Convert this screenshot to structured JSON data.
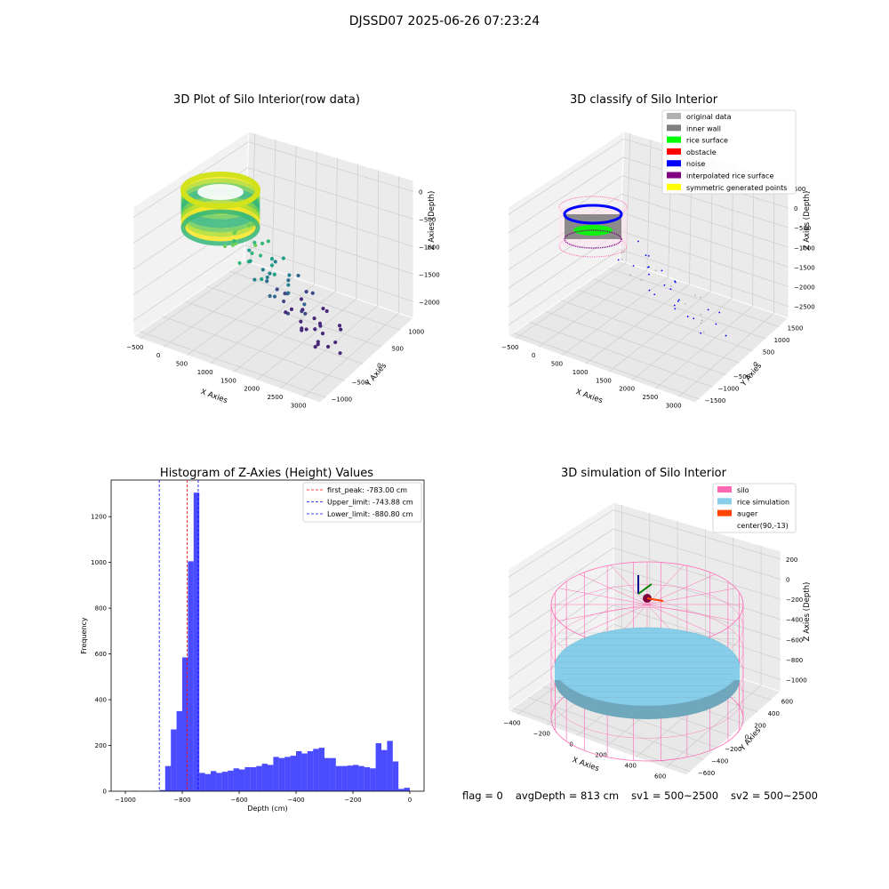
{
  "figure": {
    "suptitle": "DJSSD07 2025-06-26 07:23:24"
  },
  "footer": {
    "flag": "flag = 0",
    "avg_depth": "avgDepth = 813 cm",
    "sv1": "sv1 = 500~2500",
    "sv2": "sv2 = 500~2500"
  },
  "colors": {
    "hist_bar": "#0000ff",
    "first_peak": "#ff0000",
    "limit_line": "#0000ff",
    "silo": "#ff69b4",
    "rice": "#87ceeb",
    "auger": "#ff4500",
    "legend_original": "#b0b0b0",
    "legend_inner_wall": "#808080",
    "legend_rice_surface": "#00ff00",
    "legend_obstacle": "#ff0000",
    "legend_noise": "#0000ff",
    "legend_interp": "#800080",
    "legend_symmetric": "#ffff00"
  },
  "chart_data": [
    {
      "type": "scatter3d",
      "title": "3D Plot of Silo Interior(row data)",
      "xlabel": "X Axies",
      "ylabel": "Y Axies",
      "zlabel": "Z Axies (Depth)",
      "x_ticks": [
        "−500",
        "0",
        "500",
        "1000",
        "1500",
        "2000",
        "2500",
        "3000"
      ],
      "y_ticks": [
        "−1000",
        "−500",
        "0",
        "500",
        "1000"
      ],
      "z_ticks": [
        "0",
        "−500",
        "−1000",
        "−1500",
        "−2000"
      ],
      "colormap": "viridis"
    },
    {
      "type": "scatter3d",
      "title": "3D classify of Silo Interior",
      "xlabel": "X Axies",
      "ylabel": "Y Axies",
      "zlabel": "Z Axies (Depth)",
      "x_ticks": [
        "−500",
        "0",
        "500",
        "1000",
        "1500",
        "2000",
        "2500",
        "3000"
      ],
      "y_ticks": [
        "−1500",
        "−1000",
        "−500",
        "0",
        "500",
        "1000",
        "1500"
      ],
      "z_ticks": [
        "500",
        "0",
        "−500",
        "−1000",
        "−1500",
        "−2000",
        "−2500"
      ],
      "legend": [
        "original data",
        "inner wall",
        "rice surface",
        "obstacle",
        "noise",
        "interpolated rice surface",
        "symmetric generated points"
      ],
      "legend_placement": "top-right"
    },
    {
      "type": "bar",
      "title": "Histogram of Z-Axies (Height) Values",
      "xlabel": "Depth (cm)",
      "ylabel": "Frequency",
      "xlim": [
        -1050,
        50
      ],
      "ylim": [
        0,
        1360
      ],
      "x_ticks": [
        -1000,
        -800,
        -600,
        -400,
        -200,
        0
      ],
      "x_tick_labels": [
        "−1000",
        "−800",
        "−600",
        "−400",
        "−200",
        "0"
      ],
      "y_ticks": [
        0,
        200,
        400,
        600,
        800,
        1000,
        1200
      ],
      "bin_edges_start": -1000,
      "bin_width": 20,
      "values": [
        0,
        2,
        0,
        0,
        0,
        2,
        5,
        110,
        270,
        350,
        585,
        1005,
        1305,
        80,
        75,
        88,
        80,
        85,
        90,
        100,
        95,
        105,
        105,
        110,
        120,
        115,
        150,
        145,
        150,
        155,
        175,
        165,
        175,
        185,
        190,
        145,
        145,
        110,
        110,
        112,
        115,
        110,
        105,
        100,
        210,
        180,
        220,
        130,
        10,
        15
      ],
      "lines": [
        {
          "name": "first_peak: -783.00 cm",
          "x": -783.0,
          "color": "#ff0000"
        },
        {
          "name": "Upper_limit: -743.88 cm",
          "x": -743.88,
          "color": "#0000ff"
        },
        {
          "name": "Lower_limit: -880.80 cm",
          "x": -880.8,
          "color": "#0000ff"
        }
      ],
      "legend_placement": "top-right"
    },
    {
      "type": "surface3d",
      "title": "3D simulation of Silo Interior",
      "xlabel": "X Axies",
      "ylabel": "Y Axies",
      "zlabel": "Z Axies (Depth)",
      "x_ticks": [
        "−400",
        "−200",
        "0",
        "200",
        "400",
        "600"
      ],
      "y_ticks": [
        "−600",
        "−400",
        "−200",
        "0",
        "200",
        "400",
        "600"
      ],
      "z_ticks": [
        "200",
        "0",
        "−200",
        "−400",
        "−600",
        "−800",
        "−1000"
      ],
      "legend": [
        "silo",
        "rice simulation",
        "auger",
        "center(90,-13)"
      ],
      "legend_placement": "top-right"
    }
  ]
}
